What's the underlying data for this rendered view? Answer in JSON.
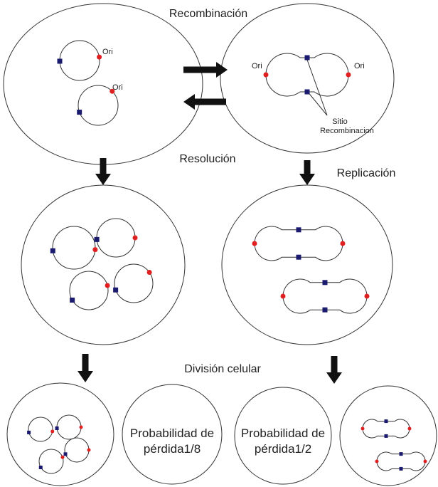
{
  "titles": {
    "recombination": "Recombinación",
    "resolution": "Resolución",
    "replication": "Replicación",
    "division": "División celular"
  },
  "ori_labels": [
    "Ori",
    "Ori",
    "Ori",
    "Ori"
  ],
  "site_label": [
    "Sitio",
    "Recombinacion"
  ],
  "loss_left": [
    "Probabilidad de",
    "pérdida1/8"
  ],
  "loss_right": [
    "Probabilidad de",
    "pérdida1/2"
  ]
}
